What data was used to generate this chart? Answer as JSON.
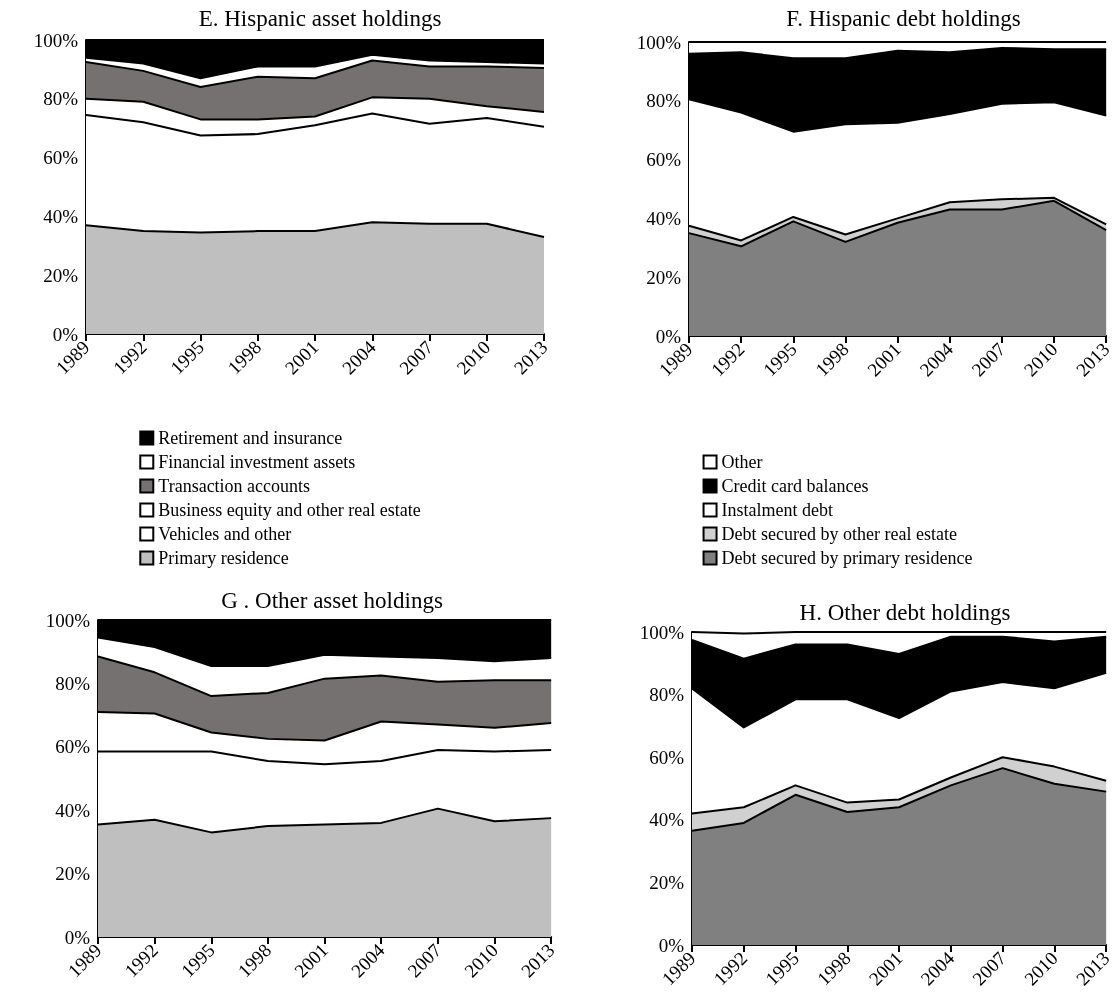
{
  "chart_data": [
    {
      "type": "area",
      "title": "E. Hispanic asset holdings",
      "stacked": true,
      "legend": "bottom",
      "categories": [
        "1989",
        "1992",
        "1995",
        "1998",
        "2001",
        "2004",
        "2007",
        "2010",
        "2013"
      ],
      "ylim": [
        0,
        100
      ],
      "yticks": [
        {
          "value": 0,
          "label": "0%"
        },
        {
          "value": 20,
          "label": "20%"
        },
        {
          "value": 40,
          "label": "40%"
        },
        {
          "value": 60,
          "label": "60%"
        },
        {
          "value": 80,
          "label": "80%"
        },
        {
          "value": 100,
          "label": "100%"
        }
      ],
      "series": [
        {
          "name": "Primary residence",
          "color": "#bfbfbf",
          "values": [
            37,
            35,
            34.5,
            35,
            35,
            38,
            37.5,
            37.5,
            33
          ]
        },
        {
          "name": "Vehicles and other",
          "color": "#ffffff",
          "values": [
            37.5,
            37,
            33,
            33,
            36,
            37,
            34,
            36,
            37.5
          ]
        },
        {
          "name": "Business equity and other real estate",
          "color": "#ffffff",
          "values": [
            5.5,
            7,
            5.5,
            5,
            3,
            5.5,
            8.5,
            4,
            5
          ]
        },
        {
          "name": "Transaction accounts",
          "color": "#767171",
          "values": [
            12.5,
            10.5,
            11,
            14.5,
            13,
            12.5,
            11,
            13.5,
            15
          ]
        },
        {
          "name": "Financial investment assets",
          "color": "#ffffff",
          "values": [
            1.5,
            2.5,
            3,
            3.5,
            4,
            2,
            2,
            1.5,
            1.5
          ]
        },
        {
          "name": "Retirement and insurance",
          "color": "#000000",
          "values": [
            6,
            8,
            13,
            9,
            9,
            5,
            7,
            7.5,
            8
          ]
        }
      ]
    },
    {
      "type": "area",
      "title": "F. Hispanic debt holdings",
      "stacked": true,
      "legend": "bottom",
      "categories": [
        "1989",
        "1992",
        "1995",
        "1998",
        "2001",
        "2004",
        "2007",
        "2010",
        "2013"
      ],
      "ylim": [
        0,
        100
      ],
      "yticks": [
        {
          "value": 0,
          "label": "0%"
        },
        {
          "value": 20,
          "label": "20%"
        },
        {
          "value": 40,
          "label": "40%"
        },
        {
          "value": 60,
          "label": "60%"
        },
        {
          "value": 80,
          "label": "80%"
        },
        {
          "value": 100,
          "label": "100%"
        }
      ],
      "series": [
        {
          "name": "Debt secured by primary residence",
          "color": "#808080",
          "values": [
            35,
            30.5,
            39,
            32,
            38.5,
            43,
            43,
            46,
            36
          ]
        },
        {
          "name": "Debt secured by other real estate",
          "color": "#d0d0d0",
          "values": [
            2.5,
            2,
            1.5,
            2.5,
            1.5,
            2.5,
            3.5,
            1,
            2
          ]
        },
        {
          "name": "Instalment debt",
          "color": "#ffffff",
          "values": [
            43,
            43.5,
            29,
            37.5,
            32.5,
            30,
            32.5,
            32.5,
            37
          ]
        },
        {
          "name": "Credit card balances",
          "color": "#000000",
          "values": [
            15.5,
            20.5,
            25,
            22.5,
            24.5,
            21,
            19,
            18,
            22.5
          ]
        },
        {
          "name": "Other",
          "color": "#ffffff",
          "values": [
            4,
            3.5,
            5.5,
            5.5,
            3,
            3.5,
            2,
            2.5,
            2.5
          ]
        }
      ]
    },
    {
      "type": "area",
      "title": "G . Other asset holdings",
      "stacked": true,
      "categories": [
        "1989",
        "1992",
        "1995",
        "1998",
        "2001",
        "2004",
        "2007",
        "2010",
        "2013"
      ],
      "ylim": [
        0,
        100
      ],
      "yticks": [
        {
          "value": 0,
          "label": "0%"
        },
        {
          "value": 20,
          "label": "20%"
        },
        {
          "value": 40,
          "label": "40%"
        },
        {
          "value": 60,
          "label": "60%"
        },
        {
          "value": 80,
          "label": "80%"
        },
        {
          "value": 100,
          "label": "100%"
        }
      ],
      "series": [
        {
          "color": "#bfbfbf",
          "values": [
            35.5,
            37,
            33,
            35,
            35.5,
            36,
            40.5,
            36.5,
            37.5
          ]
        },
        {
          "color": "#ffffff",
          "values": [
            23,
            21.5,
            25.5,
            20.5,
            19,
            19.5,
            18.5,
            22,
            21.5
          ]
        },
        {
          "color": "#ffffff",
          "values": [
            12.5,
            12,
            6,
            7,
            7.5,
            12.5,
            8,
            7.5,
            8.5
          ]
        },
        {
          "color": "#767171",
          "values": [
            17.5,
            13,
            11.5,
            14.5,
            19.5,
            14.5,
            13.5,
            15,
            13.5
          ]
        },
        {
          "color": "#ffffff",
          "values": [
            6,
            8,
            9.5,
            8.5,
            7.5,
            6,
            7.5,
            6,
            7
          ]
        },
        {
          "color": "#000000",
          "values": [
            5.5,
            8.5,
            14.5,
            14.5,
            11,
            11.5,
            12,
            13,
            12
          ]
        }
      ]
    },
    {
      "type": "area",
      "title": "H. Other debt holdings",
      "stacked": true,
      "categories": [
        "1989",
        "1992",
        "1995",
        "1998",
        "2001",
        "2004",
        "2007",
        "2010",
        "2013"
      ],
      "ylim": [
        0,
        100
      ],
      "yticks": [
        {
          "value": 0,
          "label": "0%"
        },
        {
          "value": 20,
          "label": "20%"
        },
        {
          "value": 40,
          "label": "40%"
        },
        {
          "value": 60,
          "label": "60%"
        },
        {
          "value": 80,
          "label": "80%"
        },
        {
          "value": 100,
          "label": "100%"
        }
      ],
      "series": [
        {
          "color": "#808080",
          "values": [
            36.5,
            39,
            48,
            42.5,
            44,
            51,
            56.5,
            51.5,
            49
          ]
        },
        {
          "color": "#d0d0d0",
          "values": [
            5.5,
            5,
            3,
            3,
            2.5,
            2.5,
            3.5,
            5.5,
            3.5
          ]
        },
        {
          "color": "#ffffff",
          "values": [
            40,
            25.5,
            27.5,
            33,
            26,
            27.5,
            24,
            25,
            34.5
          ]
        },
        {
          "color": "#000000",
          "values": [
            15.5,
            22,
            17.5,
            17.5,
            20.5,
            17.5,
            14.5,
            15,
            11.5
          ]
        },
        {
          "color": "#ffffff",
          "values": [
            2.5,
            8,
            4,
            4,
            7,
            1.5,
            1.5,
            3,
            1.5
          ]
        }
      ]
    }
  ]
}
